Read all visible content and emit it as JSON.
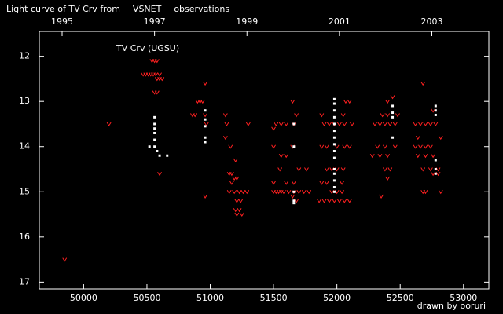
{
  "chart_data": {
    "type": "scatter",
    "title": [
      "Light curve of TV Crv from",
      "VSNET",
      "observations"
    ],
    "title_colors": [
      "#ffffff",
      "#ffff66",
      "#ffffff"
    ],
    "annotation": "TV Crv (UGSU)",
    "credit": "drawn by ooruri",
    "credit_color": "#33cccc",
    "xlim": [
      49650,
      53200
    ],
    "ylim": [
      11.45,
      17.15
    ],
    "y_inverted": true,
    "xticks": [
      50000,
      50500,
      51000,
      51500,
      52000,
      52500,
      53000
    ],
    "yticks": [
      12,
      13,
      14,
      15,
      16,
      17
    ],
    "x2ticks": [
      {
        "value": 49830,
        "label": "1995"
      },
      {
        "value": 50560,
        "label": "1997"
      },
      {
        "value": 51290,
        "label": "1999"
      },
      {
        "value": 52020,
        "label": "2001"
      },
      {
        "value": 52750,
        "label": "2003"
      }
    ],
    "series": [
      {
        "color": "#ff2020",
        "marker": "v",
        "x": [
          49850,
          50200,
          50540,
          50560,
          50580,
          50470,
          50490,
          50510,
          50530,
          50550,
          50570,
          50600,
          50580,
          50600,
          50620,
          50560,
          50580,
          50600,
          50960,
          50900,
          50920,
          50940,
          50860,
          50880,
          50960,
          50970,
          50960,
          51120,
          51130,
          51300,
          51120,
          51160,
          51200,
          51150,
          51170,
          51190,
          51210,
          51170,
          51150,
          51190,
          51230,
          51260,
          51290,
          51210,
          51240,
          51200,
          51230,
          51210,
          51250,
          51650,
          51680,
          51520,
          51560,
          51600,
          51660,
          51500,
          51500,
          51650,
          51560,
          51600,
          51550,
          51700,
          51760,
          51500,
          51600,
          51660,
          51500,
          51520,
          51540,
          51560,
          51580,
          51620,
          51660,
          51700,
          51740,
          51780,
          51650,
          51680,
          52070,
          52100,
          51880,
          52050,
          51900,
          51940,
          51980,
          52020,
          52060,
          52120,
          51880,
          51920,
          52000,
          52060,
          52100,
          51920,
          51960,
          52000,
          52050,
          51880,
          51920,
          52040,
          51960,
          52000,
          52040,
          51860,
          51900,
          51940,
          51980,
          52020,
          52060,
          52100,
          52440,
          52400,
          52360,
          52400,
          52480,
          52300,
          52340,
          52380,
          52420,
          52460,
          52320,
          52380,
          52460,
          52280,
          52340,
          52400,
          52380,
          52420,
          52400,
          52350,
          52680,
          52760,
          52620,
          52660,
          52700,
          52740,
          52780,
          52640,
          52820,
          52620,
          52660,
          52700,
          52740,
          52640,
          52700,
          52760,
          52680,
          52740,
          52800,
          52760,
          52800,
          52680,
          52700,
          52820
        ],
        "values": [
          16.5,
          13.5,
          12.1,
          12.1,
          12.1,
          12.4,
          12.4,
          12.4,
          12.4,
          12.4,
          12.4,
          12.4,
          12.5,
          12.5,
          12.5,
          12.8,
          12.8,
          14.6,
          12.6,
          13.0,
          13.0,
          13.0,
          13.3,
          13.3,
          13.3,
          13.5,
          15.1,
          13.3,
          13.5,
          13.5,
          13.8,
          14.0,
          14.3,
          14.6,
          14.6,
          14.7,
          14.7,
          14.8,
          15.0,
          15.0,
          15.0,
          15.0,
          15.0,
          15.2,
          15.2,
          15.4,
          15.4,
          15.5,
          15.5,
          13.0,
          13.3,
          13.5,
          13.5,
          13.5,
          13.5,
          13.6,
          14.0,
          14.0,
          14.2,
          14.2,
          14.5,
          14.5,
          14.5,
          14.8,
          14.8,
          14.8,
          15.0,
          15.0,
          15.0,
          15.0,
          15.0,
          15.0,
          15.0,
          15.0,
          15.0,
          15.0,
          15.1,
          15.2,
          13.0,
          13.0,
          13.3,
          13.3,
          13.5,
          13.5,
          13.5,
          13.5,
          13.5,
          13.5,
          14.0,
          14.0,
          14.0,
          14.0,
          14.0,
          14.5,
          14.5,
          14.5,
          14.5,
          14.8,
          14.8,
          14.8,
          15.0,
          15.0,
          15.0,
          15.2,
          15.2,
          15.2,
          15.2,
          15.2,
          15.2,
          15.2,
          12.9,
          13.0,
          13.3,
          13.3,
          13.3,
          13.5,
          13.5,
          13.5,
          13.5,
          13.5,
          14.0,
          14.0,
          14.0,
          14.2,
          14.2,
          14.2,
          14.5,
          14.5,
          14.7,
          15.1,
          12.6,
          13.2,
          13.5,
          13.5,
          13.5,
          13.5,
          13.5,
          13.8,
          13.8,
          14.0,
          14.0,
          14.0,
          14.0,
          14.2,
          14.2,
          14.2,
          14.5,
          14.5,
          14.5,
          14.6,
          14.6,
          15.0,
          15.0,
          15.0
        ]
      },
      {
        "color": "#ffffff",
        "marker": "dot",
        "x": [
          50560,
          50560,
          50560,
          50560,
          50560,
          50560,
          50520,
          50580,
          50600,
          50660,
          50960,
          50960,
          50960,
          50960,
          50960,
          51660,
          51660,
          51660,
          51660,
          51660,
          51980,
          51980,
          51980,
          51980,
          51980,
          51980,
          51980,
          51980,
          51980,
          51980,
          51980,
          51980,
          51980,
          51980,
          51980,
          52440,
          52440,
          52440,
          52440,
          52780,
          52780,
          52780,
          52780,
          52780,
          52780
        ],
        "values": [
          13.35,
          13.5,
          13.6,
          13.7,
          13.85,
          14.0,
          14.0,
          14.1,
          14.2,
          14.2,
          13.2,
          13.4,
          13.55,
          13.8,
          13.9,
          13.5,
          14.0,
          15.0,
          15.2,
          15.25,
          12.95,
          13.05,
          13.2,
          13.35,
          13.5,
          13.65,
          13.8,
          13.95,
          14.1,
          14.25,
          14.5,
          14.6,
          14.75,
          14.9,
          15.0,
          13.1,
          13.25,
          13.35,
          13.8,
          13.1,
          13.2,
          13.3,
          14.3,
          14.5,
          14.6
        ]
      }
    ]
  }
}
